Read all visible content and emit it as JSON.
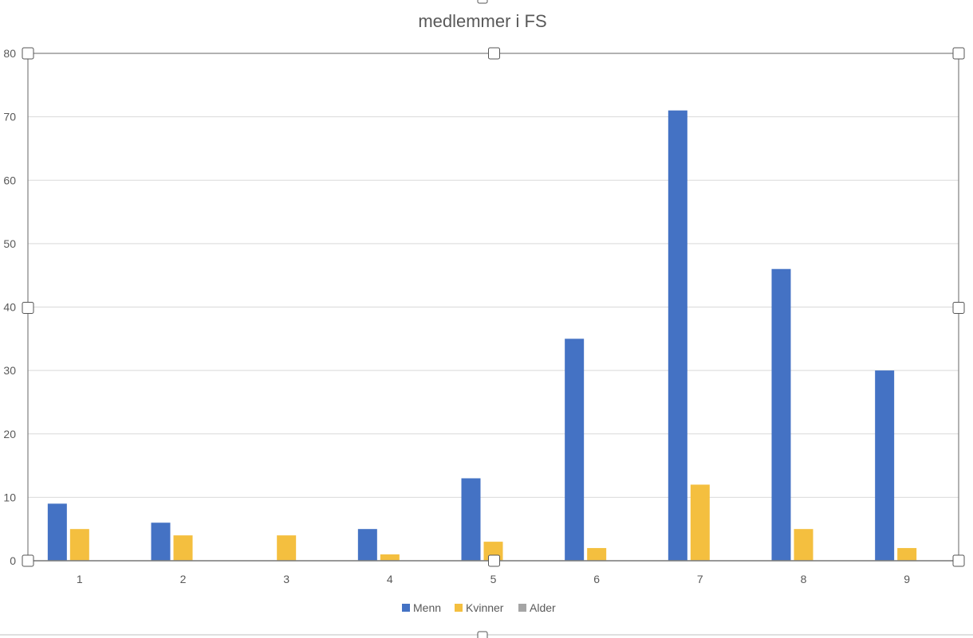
{
  "chart_data": {
    "type": "bar",
    "title": "medlemmer i FS",
    "categories": [
      "1",
      "2",
      "3",
      "4",
      "5",
      "6",
      "7",
      "8",
      "9"
    ],
    "series": [
      {
        "name": "Menn",
        "color": "#4472c4",
        "values": [
          9,
          6,
          0,
          5,
          13,
          35,
          71,
          46,
          30
        ]
      },
      {
        "name": "Kvinner",
        "color": "#f4bf3f",
        "values": [
          5,
          4,
          4,
          1,
          3,
          2,
          12,
          5,
          2
        ]
      },
      {
        "name": "Alder",
        "color": "#a5a5a5",
        "values": [
          0,
          0,
          0,
          0,
          0,
          0,
          0,
          0,
          0
        ]
      }
    ],
    "ylim": [
      0,
      80
    ],
    "yticks": [
      0,
      10,
      20,
      30,
      40,
      50,
      60,
      70,
      80
    ],
    "grid": true,
    "legend_position": "bottom"
  }
}
